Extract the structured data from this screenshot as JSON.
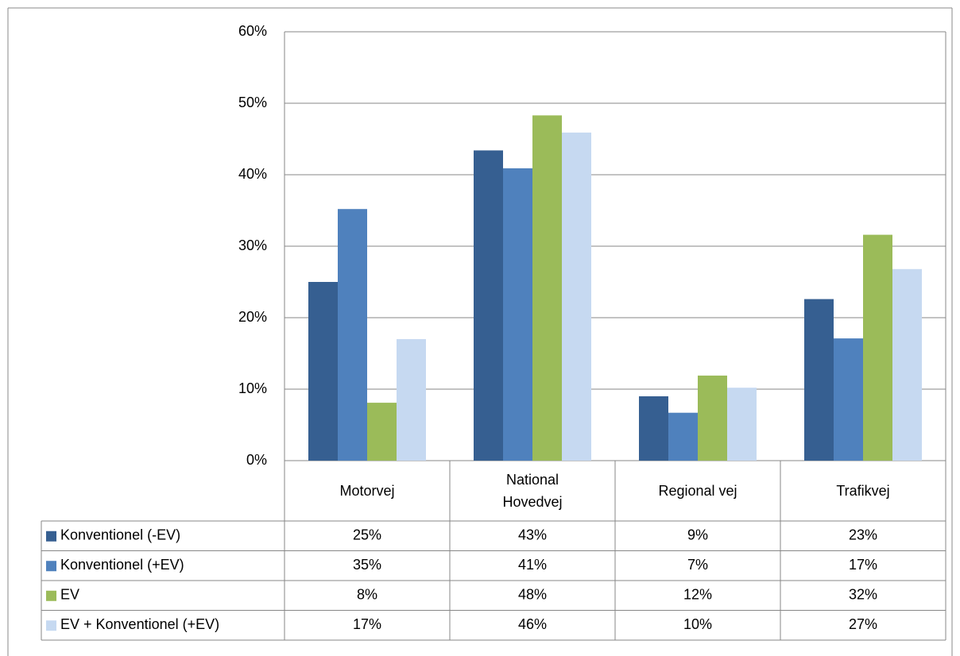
{
  "chart_data": {
    "type": "bar",
    "categories": [
      "Motorvej",
      "National Hovedvej",
      "Regional vej",
      "Trafikvej"
    ],
    "series": [
      {
        "name": "Konventionel (-EV)",
        "color": "#365f91",
        "values": [
          25,
          43.4,
          9,
          22.6
        ],
        "value_labels": [
          "25%",
          "43%",
          "9%",
          "23%"
        ]
      },
      {
        "name": "Konventionel (+EV)",
        "color": "#4f81bd",
        "values": [
          35.2,
          40.9,
          6.7,
          17.1
        ],
        "value_labels": [
          "35%",
          "41%",
          "7%",
          "17%"
        ]
      },
      {
        "name": "EV",
        "color": "#9bbb59",
        "values": [
          8.1,
          48.3,
          11.9,
          31.6
        ],
        "value_labels": [
          "8%",
          "48%",
          "12%",
          "32%"
        ]
      },
      {
        "name": "EV + Konventionel (+EV)",
        "color": "#c6d9f1",
        "values": [
          17,
          45.9,
          10.2,
          26.8
        ],
        "value_labels": [
          "17%",
          "46%",
          "10%",
          "27%"
        ]
      }
    ],
    "ylim": [
      0,
      60
    ],
    "yticks": [
      {
        "value": 0,
        "label": "0%"
      },
      {
        "value": 10,
        "label": "10%"
      },
      {
        "value": 20,
        "label": "20%"
      },
      {
        "value": 30,
        "label": "30%"
      },
      {
        "value": 40,
        "label": "40%"
      },
      {
        "value": 50,
        "label": "50%"
      },
      {
        "value": 60,
        "label": "60%"
      }
    ],
    "grid": true
  }
}
